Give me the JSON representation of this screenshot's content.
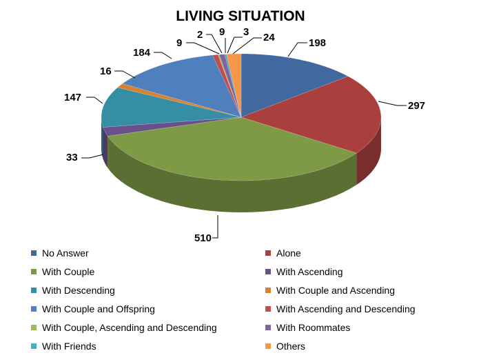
{
  "chart_data": {
    "type": "pie",
    "title": "LIVING SITUATION",
    "style": "3d",
    "legend_position": "bottom",
    "categories": [
      "No Answer",
      "Alone",
      "With Couple",
      "With Ascending",
      "With Descending",
      "With Couple and Ascending",
      "With Couple and Offspring",
      "With Ascending and Descending",
      "With Couple, Ascending and Descending",
      "With Roommates",
      "With Friends",
      "Others"
    ],
    "values": [
      198,
      297,
      510,
      33,
      147,
      16,
      184,
      9,
      2,
      9,
      3,
      24
    ],
    "value_labels": [
      "198",
      "297",
      "510",
      "33",
      "147",
      "16",
      "184",
      "9",
      "2",
      "9",
      "3",
      "24"
    ],
    "colors": [
      "#41689f",
      "#a9403d",
      "#7f9a47",
      "#68508a",
      "#358ea3",
      "#d9812f",
      "#4f7fbd",
      "#c04f4c",
      "#9bbb59",
      "#8064a2",
      "#4bacc6",
      "#f79646"
    ]
  }
}
